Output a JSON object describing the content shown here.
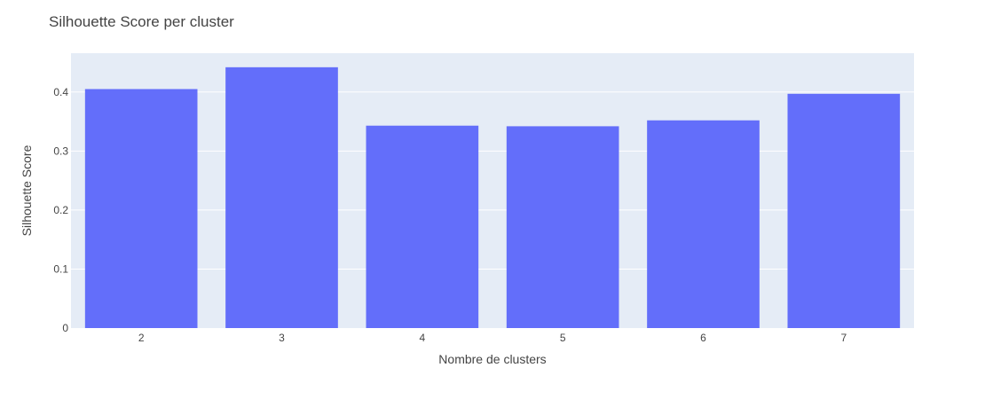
{
  "chart_data": {
    "type": "bar",
    "title": "Silhouette Score per cluster",
    "xlabel": "Nombre de clusters",
    "ylabel": "Silhouette Score",
    "categories": [
      "2",
      "3",
      "4",
      "5",
      "6",
      "7"
    ],
    "values": [
      0.405,
      0.442,
      0.343,
      0.342,
      0.352,
      0.397
    ],
    "ylim": [
      0,
      0.4658
    ],
    "yticks": [
      0,
      0.1,
      0.2,
      0.3,
      0.4
    ],
    "ytick_labels": [
      "0",
      "0.1",
      "0.2",
      "0.3",
      "0.4"
    ],
    "grid": true,
    "legend": "none"
  },
  "colors": {
    "bar": "#636efa",
    "plot_background": "#e5ecf6",
    "gridline": "#ffffff",
    "text": "#444444"
  }
}
